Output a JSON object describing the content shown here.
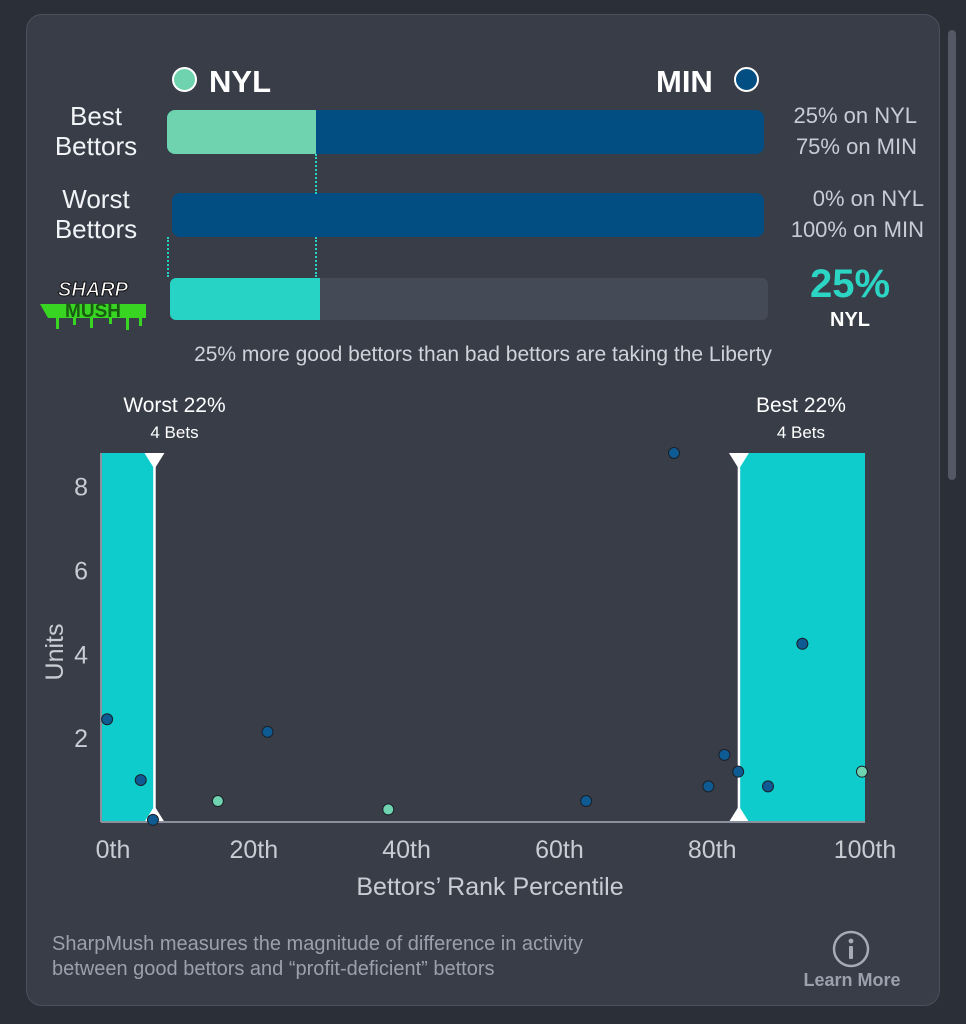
{
  "matchup": {
    "team_left": {
      "abbr": "NYL",
      "color": "#6fd3b0"
    },
    "team_right": {
      "abbr": "MIN",
      "color": "#024e82"
    }
  },
  "rows": [
    {
      "label_lines": [
        "Best",
        "Bettors"
      ],
      "left_pct_text": "25% on NYL",
      "right_pct_text": "75% on MIN",
      "left_share": 0.25
    },
    {
      "label_lines": [
        "Worst",
        "Bettors"
      ],
      "left_pct_text": "0% on NYL",
      "right_pct_text": "100% on MIN",
      "left_share": 0.0
    }
  ],
  "sharpmush": {
    "logo_text": [
      "SHARP",
      "MUSH"
    ],
    "share": 0.25,
    "value": "25%",
    "team": "NYL",
    "summary": "25% more good bettors than bad bettors are taking the Liberty",
    "bar_color": "#27d3c4"
  },
  "chart_data": {
    "type": "scatter",
    "xlabel": "Bettors’ Rank Percentile",
    "ylabel": "Units",
    "xlim": [
      0,
      100
    ],
    "ylim": [
      0,
      8.8
    ],
    "x_ticks": [
      0,
      20,
      40,
      60,
      80,
      100
    ],
    "x_tick_labels": [
      "0th",
      "20th",
      "40th",
      "60th",
      "80th",
      "100th"
    ],
    "y_ticks": [
      2,
      4,
      6,
      8
    ],
    "y_tick_labels": [
      "2",
      "4",
      "6",
      "8"
    ],
    "grid": false,
    "regions": [
      {
        "label": "Worst 22%",
        "sublabel": "4 Bets",
        "x_start": 0,
        "x_end": 7,
        "color": "#0ecccc"
      },
      {
        "label": "Best 22%",
        "sublabel": "4 Bets",
        "x_start": 83.5,
        "x_end": 100,
        "color": "#0ecccc"
      }
    ],
    "series": [
      {
        "name": "MIN",
        "color": "#0e5a92",
        "points": [
          {
            "x": 0.8,
            "y": 2.45
          },
          {
            "x": 5.2,
            "y": 1.0
          },
          {
            "x": 6.8,
            "y": 0.05
          },
          {
            "x": 21.8,
            "y": 2.15
          },
          {
            "x": 63.5,
            "y": 0.5
          },
          {
            "x": 75.0,
            "y": 8.8
          },
          {
            "x": 79.5,
            "y": 0.85
          },
          {
            "x": 81.6,
            "y": 1.6
          },
          {
            "x": 83.4,
            "y": 1.2
          },
          {
            "x": 87.3,
            "y": 0.85
          },
          {
            "x": 91.8,
            "y": 4.25
          }
        ]
      },
      {
        "name": "NYL",
        "color": "#6fd3b0",
        "points": [
          {
            "x": 15.3,
            "y": 0.5
          },
          {
            "x": 37.6,
            "y": 0.3
          },
          {
            "x": 99.6,
            "y": 1.2
          }
        ]
      }
    ]
  },
  "footer": {
    "line1": "SharpMush measures the magnitude of difference in activity",
    "line2": "between good bettors and “profit-deficient” bettors",
    "learn_more": "Learn More"
  }
}
